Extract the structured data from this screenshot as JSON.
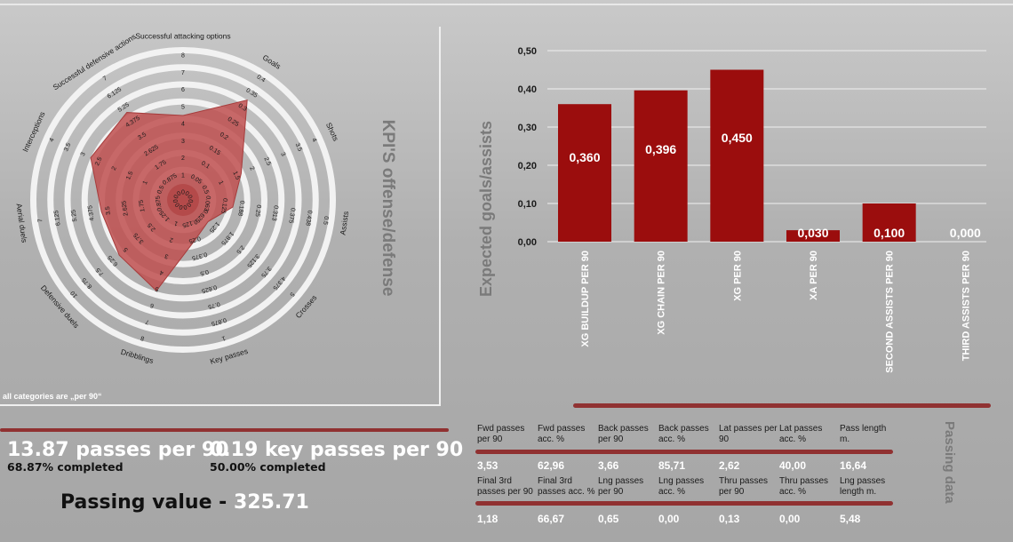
{
  "radar": {
    "note": "all categories are „per 90“",
    "side_title": "KPI'S offense/defense",
    "fill_color": "#c05050",
    "categories": [
      {
        "name": "Successful attacking options",
        "ticks": [
          "0",
          "1",
          "2",
          "3",
          "4",
          "5",
          "6",
          "7",
          "8"
        ],
        "max": 8,
        "value": 4
      },
      {
        "name": "Goals",
        "ticks": [
          "0",
          "0.05",
          "0.1",
          "0.15",
          "0.2",
          "0.25",
          "0.3",
          "0.35",
          "0.4"
        ],
        "max": 0.4,
        "value": 0.3
      },
      {
        "name": "Shots",
        "ticks": [
          "0",
          "0.5",
          "1",
          "1.5",
          "2",
          "2.5",
          "3",
          "3.5",
          "4"
        ],
        "max": 4,
        "value": 1.4
      },
      {
        "name": "Assists",
        "ticks": [
          "0",
          "0.063",
          "0.125",
          "0.188",
          "0.25",
          "0.313",
          "0.375",
          "0.438",
          "0.5"
        ],
        "max": 0.5,
        "value": 0.125
      },
      {
        "name": "Crosses",
        "ticks": [
          "0",
          "0.625",
          "1.25",
          "1.875",
          "2.5",
          "3.125",
          "3.75",
          "4.375",
          "5"
        ],
        "max": 5,
        "value": 0.625
      },
      {
        "name": "Key passes",
        "ticks": [
          "0",
          "0.125",
          "0.25",
          "0.375",
          "0.5",
          "0.625",
          "0.75",
          "0.875",
          "1"
        ],
        "max": 1,
        "value": 0.19
      },
      {
        "name": "Dribblings",
        "ticks": [
          "0",
          "1",
          "2",
          "3",
          "4",
          "5",
          "6",
          "7",
          "8"
        ],
        "max": 8,
        "value": 4.6
      },
      {
        "name": "Defensive duels",
        "ticks": [
          "0",
          "1.25",
          "2.5",
          "3.75",
          "5",
          "6.25",
          "7.5",
          "8.75",
          "10"
        ],
        "max": 10,
        "value": 5
      },
      {
        "name": "Aerial duels",
        "ticks": [
          "0",
          "0.875",
          "1.75",
          "2.625",
          "3.5",
          "4.375",
          "5.25",
          "6.125",
          "7"
        ],
        "max": 7,
        "value": 3.4
      },
      {
        "name": "Interceptions",
        "ticks": [
          "0",
          "0.5",
          "1",
          "1.5",
          "2",
          "2.5",
          "3",
          "3.5",
          "4"
        ],
        "max": 4,
        "value": 2.5
      },
      {
        "name": "Successful defensive actions",
        "ticks": [
          "0",
          "0.875",
          "1.75",
          "2.625",
          "3.5",
          "4.375",
          "5.25",
          "6.125",
          "7"
        ],
        "max": 7,
        "value": 4.5
      }
    ]
  },
  "chart_data": {
    "type": "bar",
    "ylabel": "Expected goals/assists",
    "ylim": [
      0,
      0.5
    ],
    "yticks": [
      "0,00",
      "0,10",
      "0,20",
      "0,30",
      "0,40",
      "0,50"
    ],
    "categories": [
      "XG BUILDUP PER 90",
      "XG CHAIN PER 90",
      "XG PER 90",
      "XA PER 90",
      "SECOND ASSISTS PER 90",
      "THIRD ASSISTS PER 90"
    ],
    "values": [
      0.36,
      0.396,
      0.45,
      0.03,
      0.1,
      0.0
    ],
    "value_labels": [
      "0,360",
      "0,396",
      "0,450",
      "0,030",
      "0,100",
      "0,000"
    ],
    "bar_color": "#9b0d0d",
    "grid": true
  },
  "passes": {
    "per90": "13.87 passes per 90",
    "per90_completed": "68.87% completed",
    "key": "0.19 key passes per 90",
    "key_completed": "50.00% completed",
    "value_label": "Passing value - ",
    "value": "325.71"
  },
  "passing_table": {
    "title": "Passing data",
    "row1_headers": [
      "Fwd passes per 90",
      "Fwd passes acc. %",
      "Back passes per 90",
      "Back passes acc. %",
      "Lat passes per 90",
      "Lat passes acc. %",
      "Pass length m."
    ],
    "row1_values": [
      "3,53",
      "62,96",
      "3,66",
      "85,71",
      "2,62",
      "40,00",
      "16,64"
    ],
    "row2_headers": [
      "Final 3rd passes per 90",
      "Final 3rd passes acc. %",
      "Lng passes per 90",
      "Lng passes acc. %",
      "Thru passes per 90",
      "Thru passes acc. %",
      "Lng passes length m."
    ],
    "row2_values": [
      "1,18",
      "66,67",
      "0,65",
      "0,00",
      "0,13",
      "0,00",
      "5,48"
    ]
  }
}
